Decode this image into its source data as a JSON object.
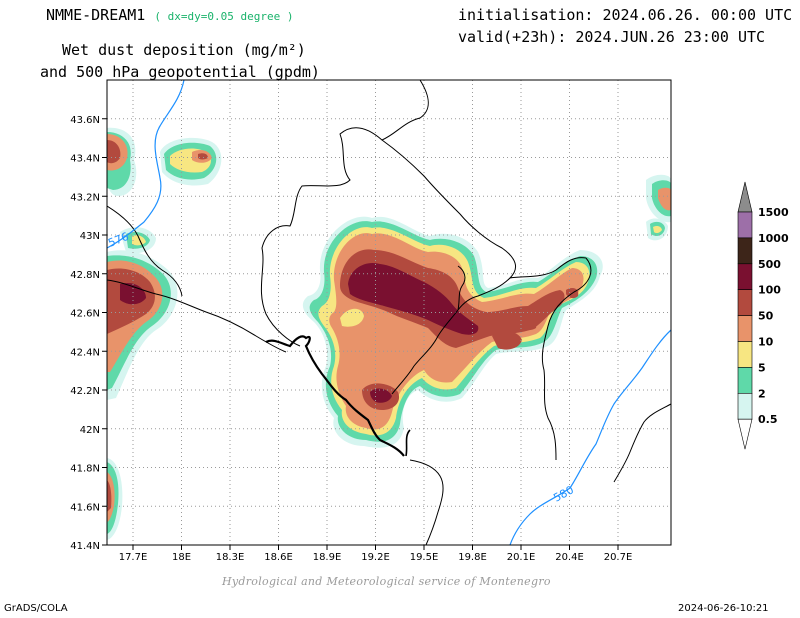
{
  "header": {
    "model": "NMME-DREAM1",
    "resolution": "( dx=dy=0.05 degree )",
    "title_line1": "Wet dust deposition (mg/m²)",
    "title_line2": "and 500 hPa geopotential (gpdm)",
    "init": "initialisation: 2024.06.26. 00:00 UTC",
    "valid": "valid(+23h): 2024.JUN.26 23:00 UTC"
  },
  "map": {
    "lon_labels": [
      "17.7E",
      "18E",
      "18.3E",
      "18.6E",
      "18.9E",
      "19.2E",
      "19.5E",
      "19.8E",
      "20.1E",
      "20.4E",
      "20.7E"
    ],
    "lat_labels": [
      "43.6N",
      "43.4N",
      "43.2N",
      "43N",
      "42.8N",
      "42.6N",
      "42.4N",
      "42.2N",
      "42N",
      "41.8N",
      "41.6N",
      "41.4N"
    ],
    "contour_labels": [
      "576",
      "580"
    ],
    "contour_color": "#1e90ff"
  },
  "legend": {
    "levels": [
      "1500",
      "1000",
      "500",
      "100",
      "50",
      "10",
      "5",
      "2",
      "0.5"
    ],
    "colors": [
      "#8c8c8c",
      "#9d6fa8",
      "#3d2519",
      "#7a1030",
      "#b24a3e",
      "#e8936a",
      "#f7e682",
      "#5fd9a9",
      "#d6f5f0"
    ]
  },
  "footer": {
    "credit": "Hydrological and Meteorological service of Montenegro",
    "left": "GrADS/COLA",
    "timestamp": "2024-06-26-10:21"
  }
}
